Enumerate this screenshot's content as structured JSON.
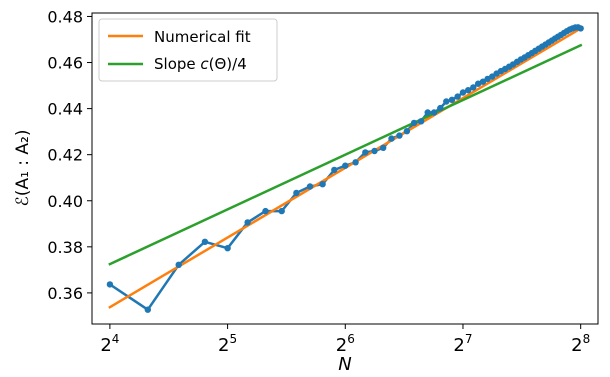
{
  "chart_data": {
    "type": "line",
    "xscale": "log2",
    "xlim": [
      14.4,
      283.5
    ],
    "ylim": [
      0.3465,
      0.4815
    ],
    "xticks": [
      {
        "value": 16,
        "base": "2",
        "exp": "4"
      },
      {
        "value": 32,
        "base": "2",
        "exp": "5"
      },
      {
        "value": 64,
        "base": "2",
        "exp": "6"
      },
      {
        "value": 128,
        "base": "2",
        "exp": "7"
      },
      {
        "value": 256,
        "base": "2",
        "exp": "8"
      }
    ],
    "yticks": [
      0.36,
      0.38,
      0.4,
      0.42,
      0.44,
      0.46,
      0.48
    ],
    "ytick_labels": [
      "0.36",
      "0.38",
      "0.40",
      "0.42",
      "0.44",
      "0.46",
      "0.48"
    ],
    "xlabel": "N",
    "ylabel": "ℰ(A₁ : A₂)",
    "legend_position": "top-left",
    "series": [
      {
        "name": "",
        "color": "#1f77b4",
        "marker": "circle",
        "x": [
          16,
          20,
          24,
          28,
          32,
          36,
          40,
          44,
          48,
          52,
          56,
          60,
          64,
          68,
          72,
          76,
          80,
          84,
          88,
          92,
          96,
          100,
          104,
          108,
          112,
          116,
          120,
          124,
          128,
          132,
          136,
          140,
          144,
          148,
          152,
          156,
          160,
          164,
          168,
          172,
          176,
          180,
          184,
          188,
          192,
          196,
          200,
          204,
          208,
          212,
          216,
          220,
          224,
          228,
          232,
          236,
          240,
          244,
          248,
          252,
          256
        ],
        "y": [
          0.3637,
          0.3527,
          0.3722,
          0.3822,
          0.3794,
          0.3906,
          0.3955,
          0.3955,
          0.4034,
          0.4062,
          0.4072,
          0.4134,
          0.4152,
          0.4167,
          0.421,
          0.4216,
          0.423,
          0.427,
          0.4283,
          0.4302,
          0.4338,
          0.4345,
          0.4383,
          0.4383,
          0.4402,
          0.4431,
          0.4438,
          0.4452,
          0.447,
          0.448,
          0.4492,
          0.4508,
          0.4517,
          0.4529,
          0.4539,
          0.4552,
          0.4563,
          0.4572,
          0.4582,
          0.4592,
          0.4603,
          0.4613,
          0.4622,
          0.4632,
          0.4641,
          0.4651,
          0.466,
          0.4669,
          0.4678,
          0.4687,
          0.4695,
          0.4704,
          0.4712,
          0.472,
          0.4728,
          0.4736,
          0.4743,
          0.4748,
          0.4752,
          0.4753,
          0.4748
        ]
      },
      {
        "name": "Numerical fit",
        "color": "#ff7f0e",
        "x": [
          16,
          256
        ],
        "y": [
          0.3538,
          0.4748
        ]
      },
      {
        "name": "Slope c(Θ)/4",
        "name_parts": {
          "pre": "Slope ",
          "italic": "c",
          "post": "(Θ)/4"
        },
        "color": "#2ca02c",
        "x": [
          16,
          256
        ],
        "y": [
          0.3725,
          0.4675
        ]
      }
    ]
  }
}
